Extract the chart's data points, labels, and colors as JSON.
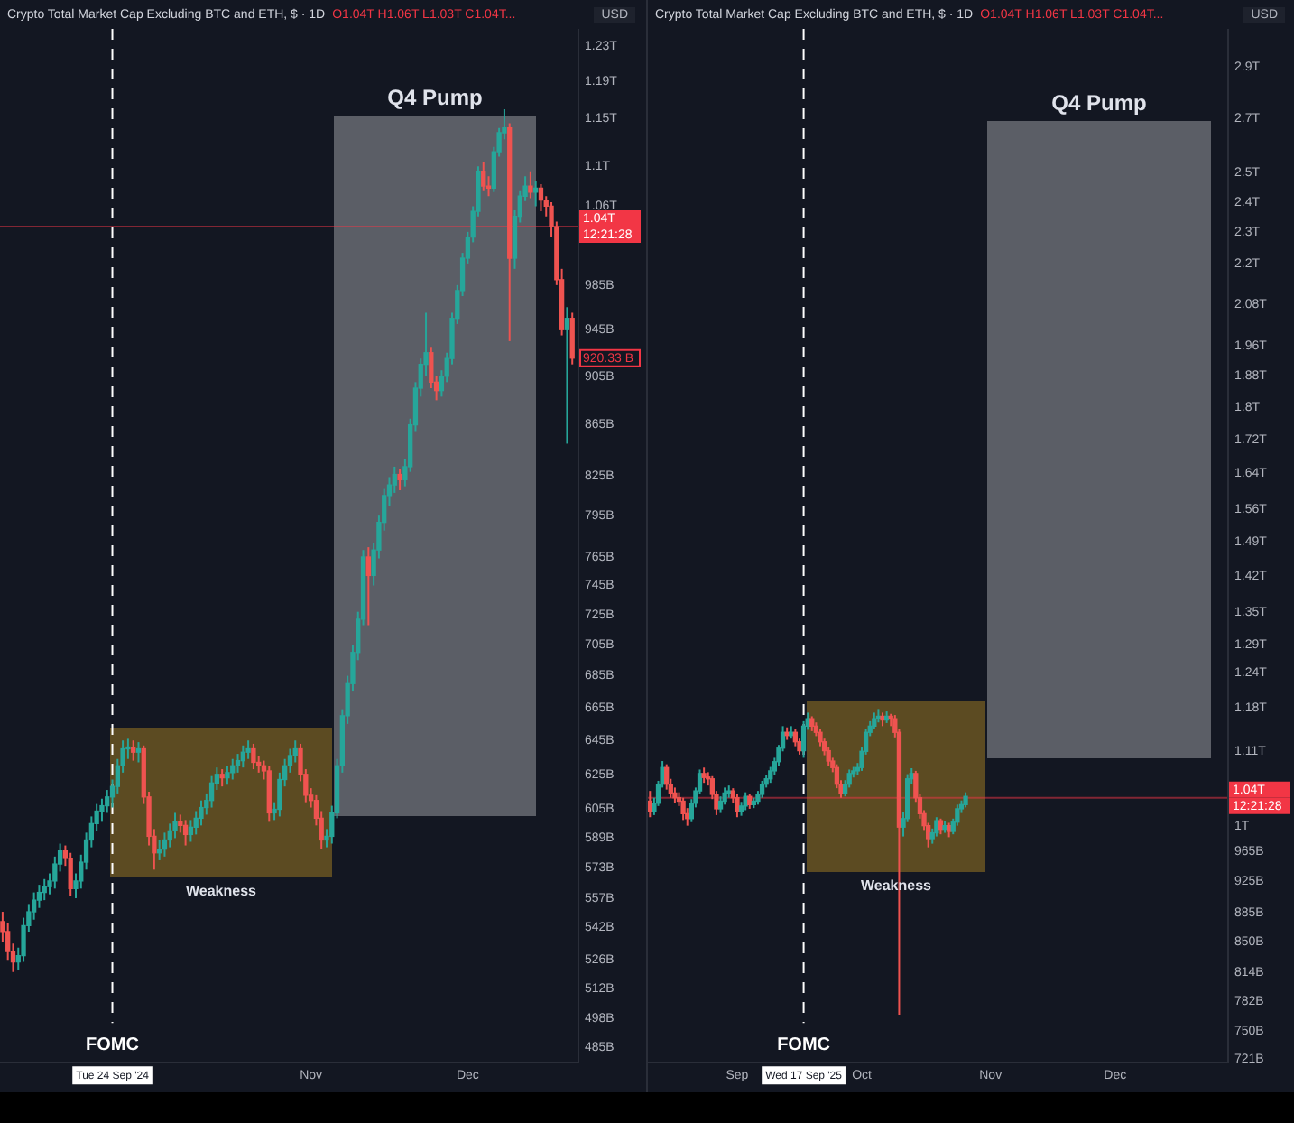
{
  "chart_data": [
    {
      "type": "candlestick",
      "title": "Crypto Total Market Cap Excluding BTC and ETH, $ · 1D",
      "subtitle": "O1.04T H1.06T L1.03T C1.04T...",
      "ylabel": "USD",
      "x": [
        "2024-09-03",
        "2024-09-04",
        "2024-09-05",
        "2024-09-06",
        "2024-09-07",
        "2024-09-08",
        "2024-09-09",
        "2024-09-10",
        "2024-09-11",
        "2024-09-12",
        "2024-09-13",
        "2024-09-14",
        "2024-09-15",
        "2024-09-16",
        "2024-09-17",
        "2024-09-18",
        "2024-09-19",
        "2024-09-20",
        "2024-09-21",
        "2024-09-22",
        "2024-09-23",
        "2024-09-24",
        "2024-09-25",
        "2024-09-26",
        "2024-09-27",
        "2024-09-28",
        "2024-09-29",
        "2024-09-30",
        "2024-10-01",
        "2024-10-02",
        "2024-10-03",
        "2024-10-04",
        "2024-10-05",
        "2024-10-06",
        "2024-10-07",
        "2024-10-08",
        "2024-10-09",
        "2024-10-10",
        "2024-10-11",
        "2024-10-12",
        "2024-10-13",
        "2024-10-14",
        "2024-10-15",
        "2024-10-16",
        "2024-10-17",
        "2024-10-18",
        "2024-10-19",
        "2024-10-20",
        "2024-10-21",
        "2024-10-22",
        "2024-10-23",
        "2024-10-24",
        "2024-10-25",
        "2024-10-26",
        "2024-10-27",
        "2024-10-28",
        "2024-10-29",
        "2024-10-30",
        "2024-10-31",
        "2024-11-01",
        "2024-11-02",
        "2024-11-03",
        "2024-11-04",
        "2024-11-05",
        "2024-11-06",
        "2024-11-07",
        "2024-11-08",
        "2024-11-09",
        "2024-11-10",
        "2024-11-11",
        "2024-11-12",
        "2024-11-13",
        "2024-11-14",
        "2024-11-15",
        "2024-11-16",
        "2024-11-17",
        "2024-11-18",
        "2024-11-19",
        "2024-11-20",
        "2024-11-21",
        "2024-11-22",
        "2024-11-23",
        "2024-11-24",
        "2024-11-25",
        "2024-11-26",
        "2024-11-27",
        "2024-11-28",
        "2024-11-29",
        "2024-11-30",
        "2024-12-01",
        "2024-12-02",
        "2024-12-03",
        "2024-12-04",
        "2024-12-05",
        "2024-12-06",
        "2024-12-07",
        "2024-12-08",
        "2024-12-09",
        "2024-12-10",
        "2024-12-11",
        "2024-12-12",
        "2024-12-13",
        "2024-12-14",
        "2024-12-15",
        "2024-12-16",
        "2024-12-17",
        "2024-12-18",
        "2024-12-19",
        "2024-12-20",
        "2024-12-21"
      ],
      "ohlc": [
        [
          545000000000.0,
          550000000000.0,
          535000000000.0,
          540000000000.0
        ],
        [
          540000000000.0,
          544000000000.0,
          526000000000.0,
          530000000000.0
        ],
        [
          530000000000.0,
          534000000000.0,
          520000000000.0,
          525000000000.0
        ],
        [
          525000000000.0,
          532000000000.0,
          521000000000.0,
          528000000000.0
        ],
        [
          528000000000.0,
          547000000000.0,
          525000000000.0,
          543000000000.0
        ],
        [
          543000000000.0,
          554000000000.0,
          540000000000.0,
          550000000000.0
        ],
        [
          550000000000.0,
          560000000000.0,
          546000000000.0,
          556000000000.0
        ],
        [
          556000000000.0,
          564000000000.0,
          552000000000.0,
          560000000000.0
        ],
        [
          560000000000.0,
          567000000000.0,
          556000000000.0,
          563000000000.0
        ],
        [
          563000000000.0,
          570000000000.0,
          559000000000.0,
          566000000000.0
        ],
        [
          566000000000.0,
          579000000000.0,
          562000000000.0,
          575000000000.0
        ],
        [
          575000000000.0,
          586000000000.0,
          571000000000.0,
          582000000000.0
        ],
        [
          582000000000.0,
          585000000000.0,
          574000000000.0,
          578000000000.0
        ],
        [
          578000000000.0,
          581000000000.0,
          558000000000.0,
          562000000000.0
        ],
        [
          562000000000.0,
          570000000000.0,
          557000000000.0,
          566000000000.0
        ],
        [
          566000000000.0,
          580000000000.0,
          562000000000.0,
          576000000000.0
        ],
        [
          576000000000.0,
          592000000000.0,
          572000000000.0,
          588000000000.0
        ],
        [
          588000000000.0,
          601000000000.0,
          584000000000.0,
          597000000000.0
        ],
        [
          597000000000.0,
          608000000000.0,
          593000000000.0,
          604000000000.0
        ],
        [
          604000000000.0,
          611000000000.0,
          598000000000.0,
          607000000000.0
        ],
        [
          607000000000.0,
          616000000000.0,
          603000000000.0,
          612000000000.0
        ],
        [
          612000000000.0,
          622000000000.0,
          606000000000.0,
          618000000000.0
        ],
        [
          618000000000.0,
          634000000000.0,
          614000000000.0,
          630000000000.0
        ],
        [
          630000000000.0,
          645000000000.0,
          626000000000.0,
          640000000000.0
        ],
        [
          640000000000.0,
          646000000000.0,
          634000000000.0,
          641000000000.0
        ],
        [
          641000000000.0,
          645000000000.0,
          633000000000.0,
          638000000000.0
        ],
        [
          638000000000.0,
          644000000000.0,
          632000000000.0,
          640000000000.0
        ],
        [
          640000000000.0,
          642000000000.0,
          608000000000.0,
          612000000000.0
        ],
        [
          612000000000.0,
          615000000000.0,
          585000000000.0,
          590000000000.0
        ],
        [
          590000000000.0,
          594000000000.0,
          572000000000.0,
          581000000000.0
        ],
        [
          581000000000.0,
          588000000000.0,
          577000000000.0,
          583000000000.0
        ],
        [
          583000000000.0,
          592000000000.0,
          579000000000.0,
          588000000000.0
        ],
        [
          588000000000.0,
          597000000000.0,
          584000000000.0,
          593000000000.0
        ],
        [
          593000000000.0,
          603000000000.0,
          589000000000.0,
          598000000000.0
        ],
        [
          598000000000.0,
          602000000000.0,
          592000000000.0,
          596000000000.0
        ],
        [
          596000000000.0,
          599000000000.0,
          585000000000.0,
          591000000000.0
        ],
        [
          591000000000.0,
          599000000000.0,
          587000000000.0,
          595000000000.0
        ],
        [
          595000000000.0,
          604000000000.0,
          591000000000.0,
          600000000000.0
        ],
        [
          600000000000.0,
          610000000000.0,
          596000000000.0,
          606000000000.0
        ],
        [
          606000000000.0,
          614000000000.0,
          602000000000.0,
          610000000000.0
        ],
        [
          610000000000.0,
          624000000000.0,
          606000000000.0,
          620000000000.0
        ],
        [
          620000000000.0,
          629000000000.0,
          616000000000.0,
          625000000000.0
        ],
        [
          625000000000.0,
          628000000000.0,
          618000000000.0,
          623000000000.0
        ],
        [
          623000000000.0,
          630000000000.0,
          619000000000.0,
          626000000000.0
        ],
        [
          626000000000.0,
          634000000000.0,
          622000000000.0,
          630000000000.0
        ],
        [
          630000000000.0,
          637000000000.0,
          626000000000.0,
          633000000000.0
        ],
        [
          633000000000.0,
          642000000000.0,
          629000000000.0,
          638000000000.0
        ],
        [
          638000000000.0,
          645000000000.0,
          634000000000.0,
          640000000000.0
        ],
        [
          640000000000.0,
          643000000000.0,
          628000000000.0,
          632000000000.0
        ],
        [
          632000000000.0,
          636000000000.0,
          626000000000.0,
          630000000000.0
        ],
        [
          630000000000.0,
          633000000000.0,
          622000000000.0,
          627000000000.0
        ],
        [
          627000000000.0,
          630000000000.0,
          598000000000.0,
          603000000000.0
        ],
        [
          603000000000.0,
          609000000000.0,
          599000000000.0,
          605000000000.0
        ],
        [
          605000000000.0,
          626000000000.0,
          601000000000.0,
          622000000000.0
        ],
        [
          622000000000.0,
          634000000000.0,
          618000000000.0,
          630000000000.0
        ],
        [
          630000000000.0,
          640000000000.0,
          626000000000.0,
          636000000000.0
        ],
        [
          636000000000.0,
          645000000000.0,
          632000000000.0,
          640000000000.0
        ],
        [
          640000000000.0,
          643000000000.0,
          621000000000.0,
          625000000000.0
        ],
        [
          625000000000.0,
          628000000000.0,
          609000000000.0,
          613000000000.0
        ],
        [
          613000000000.0,
          617000000000.0,
          606000000000.0,
          610000000000.0
        ],
        [
          610000000000.0,
          613000000000.0,
          596000000000.0,
          600000000000.0
        ],
        [
          600000000000.0,
          604000000000.0,
          583000000000.0,
          588000000000.0
        ],
        [
          588000000000.0,
          594000000000.0,
          584000000000.0,
          590000000000.0
        ],
        [
          590000000000.0,
          607000000000.0,
          586000000000.0,
          603000000000.0
        ],
        [
          603000000000.0,
          634000000000.0,
          600000000000.0,
          630000000000.0
        ],
        [
          630000000000.0,
          664000000000.0,
          626000000000.0,
          660000000000.0
        ],
        [
          660000000000.0,
          685000000000.0,
          655000000000.0,
          680000000000.0
        ],
        [
          680000000000.0,
          705000000000.0,
          675000000000.0,
          700000000000.0
        ],
        [
          700000000000.0,
          727000000000.0,
          695000000000.0,
          722000000000.0
        ],
        [
          722000000000.0,
          770000000000.0,
          718000000000.0,
          765000000000.0
        ],
        [
          765000000000.0,
          772000000000.0,
          718000000000.0,
          752000000000.0
        ],
        [
          752000000000.0,
          775000000000.0,
          745000000000.0,
          770000000000.0
        ],
        [
          770000000000.0,
          795000000000.0,
          764000000000.0,
          790000000000.0
        ],
        [
          790000000000.0,
          815000000000.0,
          784000000000.0,
          810000000000.0
        ],
        [
          810000000000.0,
          824000000000.0,
          802000000000.0,
          818000000000.0
        ],
        [
          818000000000.0,
          832000000000.0,
          812000000000.0,
          826000000000.0
        ],
        [
          826000000000.0,
          830000000000.0,
          814000000000.0,
          822000000000.0
        ],
        [
          822000000000.0,
          838000000000.0,
          817000000000.0,
          832000000000.0
        ],
        [
          832000000000.0,
          870000000000.0,
          828000000000.0,
          865000000000.0
        ],
        [
          865000000000.0,
          900000000000.0,
          860000000000.0,
          895000000000.0
        ],
        [
          895000000000.0,
          920000000000.0,
          888000000000.0,
          915000000000.0
        ],
        [
          915000000000.0,
          960000000000.0,
          905000000000.0,
          925000000000.0
        ],
        [
          925000000000.0,
          930000000000.0,
          895000000000.0,
          900000000000.0
        ],
        [
          900000000000.0,
          905000000000.0,
          885000000000.0,
          893000000000.0
        ],
        [
          893000000000.0,
          910000000000.0,
          888000000000.0,
          905000000000.0
        ],
        [
          905000000000.0,
          925000000000.0,
          900000000000.0,
          920000000000.0
        ],
        [
          920000000000.0,
          960000000000.0,
          915000000000.0,
          955000000000.0
        ],
        [
          955000000000.0,
          985000000000.0,
          950000000000.0,
          980000000000.0
        ],
        [
          980000000000.0,
          1015000000000.0,
          975000000000.0,
          1010000000000.0
        ],
        [
          1010000000000.0,
          1035000000000.0,
          1005000000000.0,
          1030000000000.0
        ],
        [
          1030000000000.0,
          1060000000000.0,
          1025000000000.0,
          1055000000000.0
        ],
        [
          1055000000000.0,
          1100000000000.0,
          1050000000000.0,
          1095000000000.0
        ],
        [
          1095000000000.0,
          1105000000000.0,
          1075000000000.0,
          1080000000000.0
        ],
        [
          1080000000000.0,
          1090000000000.0,
          1070000000000.0,
          1078000000000.0
        ],
        [
          1078000000000.0,
          1120000000000.0,
          1074000000000.0,
          1115000000000.0
        ],
        [
          1115000000000.0,
          1140000000000.0,
          1110000000000.0,
          1135000000000.0
        ],
        [
          1135000000000.0,
          1160000000000.0,
          1128000000000.0,
          1140000000000.0
        ],
        [
          1140000000000.0,
          1145000000000.0,
          935000000000.0,
          1010000000000.0
        ],
        [
          1010000000000.0,
          1056000000000.0,
          1000000000000.0,
          1050000000000.0
        ],
        [
          1050000000000.0,
          1075000000000.0,
          1044000000000.0,
          1070000000000.0
        ],
        [
          1070000000000.0,
          1090000000000.0,
          1065000000000.0,
          1080000000000.0
        ],
        [
          1080000000000.0,
          1095000000000.0,
          1068000000000.0,
          1074000000000.0
        ],
        [
          1074000000000.0,
          1085000000000.0,
          1060000000000.0,
          1078000000000.0
        ],
        [
          1078000000000.0,
          1082000000000.0,
          1055000000000.0,
          1066000000000.0
        ],
        [
          1066000000000.0,
          1070000000000.0,
          1050000000000.0,
          1060000000000.0
        ],
        [
          1060000000000.0,
          1064000000000.0,
          1030000000000.0,
          1040000000000.0
        ],
        [
          1040000000000.0,
          1045000000000.0,
          985000000000.0,
          990000000000.0
        ],
        [
          990000000000.0,
          1000000000000.0,
          940000000000.0,
          945000000000.0
        ],
        [
          945000000000.0,
          965000000000.0,
          850000000000.0,
          955000000000.0
        ],
        [
          955000000000.0,
          960000000000.0,
          915000000000.0,
          920330000000.0
        ]
      ],
      "colors": [
        "#ef5350",
        "#ef5350",
        "#ef5350",
        "#26a69a",
        "#26a69a",
        "#26a69a",
        "#26a69a",
        "#26a69a",
        "#26a69a",
        "#26a69a",
        "#26a69a",
        "#26a69a",
        "#ef5350",
        "#ef5350",
        "#26a69a",
        "#26a69a",
        "#26a69a",
        "#26a69a",
        "#26a69a",
        "#26a69a",
        "#26a69a",
        "#26a69a",
        "#26a69a",
        "#26a69a",
        "#26a69a",
        "#ef5350",
        "#26a69a",
        "#ef5350",
        "#ef5350",
        "#ef5350",
        "#26a69a",
        "#26a69a",
        "#26a69a",
        "#26a69a",
        "#ef5350",
        "#ef5350",
        "#26a69a",
        "#26a69a",
        "#26a69a",
        "#26a69a",
        "#26a69a",
        "#26a69a",
        "#ef5350",
        "#26a69a",
        "#26a69a",
        "#26a69a",
        "#26a69a",
        "#26a69a",
        "#ef5350",
        "#ef5350",
        "#ef5350",
        "#ef5350",
        "#26a69a",
        "#26a69a",
        "#26a69a",
        "#26a69a",
        "#26a69a",
        "#ef5350",
        "#ef5350",
        "#ef5350",
        "#ef5350",
        "#ef5350",
        "#26a69a",
        "#26a69a",
        "#26a69a",
        "#26a69a",
        "#26a69a",
        "#26a69a",
        "#26a69a",
        "#26a69a",
        "#ef5350",
        "#26a69a",
        "#26a69a",
        "#26a69a",
        "#26a69a",
        "#26a69a",
        "#ef5350",
        "#26a69a",
        "#26a69a",
        "#26a69a",
        "#26a69a",
        "#26a69a",
        "#ef5350",
        "#ef5350",
        "#26a69a",
        "#26a69a",
        "#26a69a",
        "#26a69a",
        "#26a69a",
        "#26a69a",
        "#26a69a",
        "#26a69a",
        "#ef5350",
        "#ef5350",
        "#26a69a",
        "#26a69a",
        "#26a69a",
        "#ef5350",
        "#26a69a",
        "#26a69a",
        "#26a69a",
        "#ef5350",
        "#26a69a",
        "#ef5350",
        "#ef5350",
        "#ef5350",
        "#ef5350",
        "#ef5350",
        "#26a69a",
        "#ef5350"
      ],
      "log": true,
      "xlim": [
        "2024-09-02T12:00",
        "2024-12-22"
      ],
      "ylim": [
        478000000000.0,
        1250000000000.0
      ],
      "xticks": [
        {
          "value": "2024-11-01",
          "label": "Nov"
        },
        {
          "value": "2024-12-01",
          "label": "Dec"
        }
      ],
      "yticks": [
        {
          "value": 1230000000000.0,
          "label": "1.23T"
        },
        {
          "value": 1190000000000.0,
          "label": "1.19T"
        },
        {
          "value": 1150000000000.0,
          "label": "1.15T"
        },
        {
          "value": 1100000000000.0,
          "label": "1.1T"
        },
        {
          "value": 1060000000000.0,
          "label": "1.06T"
        },
        {
          "value": 985000000000.0,
          "label": "985B"
        },
        {
          "value": 945000000000.0,
          "label": "945B"
        },
        {
          "value": 905000000000.0,
          "label": "905B"
        },
        {
          "value": 865000000000.0,
          "label": "865B"
        },
        {
          "value": 825000000000.0,
          "label": "825B"
        },
        {
          "value": 795000000000.0,
          "label": "795B"
        },
        {
          "value": 765000000000.0,
          "label": "765B"
        },
        {
          "value": 745000000000.0,
          "label": "745B"
        },
        {
          "value": 725000000000.0,
          "label": "725B"
        },
        {
          "value": 705000000000.0,
          "label": "705B"
        },
        {
          "value": 685000000000.0,
          "label": "685B"
        },
        {
          "value": 665000000000.0,
          "label": "665B"
        },
        {
          "value": 645000000000.0,
          "label": "645B"
        },
        {
          "value": 625000000000.0,
          "label": "625B"
        },
        {
          "value": 605000000000.0,
          "label": "605B"
        },
        {
          "value": 589000000000.0,
          "label": "589B"
        },
        {
          "value": 573000000000.0,
          "label": "573B"
        },
        {
          "value": 557000000000.0,
          "label": "557B"
        },
        {
          "value": 542000000000.0,
          "label": "542B"
        },
        {
          "value": 526000000000.0,
          "label": "526B"
        },
        {
          "value": 512000000000.0,
          "label": "512B"
        },
        {
          "value": 498000000000.0,
          "label": "498B"
        },
        {
          "value": 485000000000.0,
          "label": "485B"
        }
      ],
      "ref_lines": [
        {
          "axis": "x",
          "value": "2024-09-24",
          "label": "FOMC",
          "color": "#ffffff",
          "line_style": "dashed"
        },
        {
          "axis": "y",
          "value": 1040000000000.0,
          "label": "1.04T",
          "color": "#f23645"
        }
      ],
      "annotations": [
        "Tue 24 Sep '24",
        "12:21:28",
        "Weakness",
        "Q4 Pump",
        {
          "text": "920.33 B",
          "x": "2024-12-21",
          "y": 920330000000.0
        }
      ]
    },
    {
      "type": "candlestick",
      "title": "Crypto Total Market Cap Excluding BTC and ETH, $ · 1D",
      "subtitle": "O1.04T H1.06T L1.03T C1.04T...",
      "ylabel": "USD",
      "x": [
        "2025-08-11",
        "2025-08-12",
        "2025-08-13",
        "2025-08-14",
        "2025-08-15",
        "2025-08-16",
        "2025-08-17",
        "2025-08-18",
        "2025-08-19",
        "2025-08-20",
        "2025-08-21",
        "2025-08-22",
        "2025-08-23",
        "2025-08-24",
        "2025-08-25",
        "2025-08-26",
        "2025-08-27",
        "2025-08-28",
        "2025-08-29",
        "2025-08-30",
        "2025-08-31",
        "2025-09-01",
        "2025-09-02",
        "2025-09-03",
        "2025-09-04",
        "2025-09-05",
        "2025-09-06",
        "2025-09-07",
        "2025-09-08",
        "2025-09-09",
        "2025-09-10",
        "2025-09-11",
        "2025-09-12",
        "2025-09-13",
        "2025-09-14",
        "2025-09-15",
        "2025-09-16",
        "2025-09-17",
        "2025-09-18",
        "2025-09-19",
        "2025-09-20",
        "2025-09-21",
        "2025-09-22",
        "2025-09-23",
        "2025-09-24",
        "2025-09-25",
        "2025-09-26",
        "2025-09-27",
        "2025-09-28",
        "2025-09-29",
        "2025-09-30",
        "2025-10-01",
        "2025-10-02",
        "2025-10-03",
        "2025-10-04",
        "2025-10-05",
        "2025-10-06",
        "2025-10-07",
        "2025-10-08",
        "2025-10-09",
        "2025-10-10",
        "2025-10-11",
        "2025-10-12",
        "2025-10-13",
        "2025-10-14",
        "2025-10-15",
        "2025-10-16",
        "2025-10-17",
        "2025-10-18",
        "2025-10-19",
        "2025-10-20",
        "2025-10-21",
        "2025-10-22",
        "2025-10-23",
        "2025-10-24",
        "2025-10-25",
        "2025-10-26"
      ],
      "ohlc": [
        [
          1035000000000.0,
          1050000000000.0,
          1012000000000.0,
          1020000000000.0
        ],
        [
          1020000000000.0,
          1040000000000.0,
          1015000000000.0,
          1032000000000.0
        ],
        [
          1032000000000.0,
          1065000000000.0,
          1028000000000.0,
          1060000000000.0
        ],
        [
          1060000000000.0,
          1095000000000.0,
          1055000000000.0,
          1085000000000.0
        ],
        [
          1085000000000.0,
          1090000000000.0,
          1052000000000.0,
          1060000000000.0
        ],
        [
          1060000000000.0,
          1068000000000.0,
          1040000000000.0,
          1047000000000.0
        ],
        [
          1047000000000.0,
          1055000000000.0,
          1032000000000.0,
          1040000000000.0
        ],
        [
          1040000000000.0,
          1048000000000.0,
          1028000000000.0,
          1035000000000.0
        ],
        [
          1035000000000.0,
          1040000000000.0,
          1008000000000.0,
          1017000000000.0
        ],
        [
          1017000000000.0,
          1025000000000.0,
          1000000000000.0,
          1010000000000.0
        ],
        [
          1010000000000.0,
          1038000000000.0,
          1005000000000.0,
          1032000000000.0
        ],
        [
          1032000000000.0,
          1055000000000.0,
          1026000000000.0,
          1050000000000.0
        ],
        [
          1050000000000.0,
          1082000000000.0,
          1045000000000.0,
          1076000000000.0
        ],
        [
          1076000000000.0,
          1085000000000.0,
          1062000000000.0,
          1070000000000.0
        ],
        [
          1070000000000.0,
          1078000000000.0,
          1058000000000.0,
          1068000000000.0
        ],
        [
          1068000000000.0,
          1072000000000.0,
          1038000000000.0,
          1045000000000.0
        ],
        [
          1045000000000.0,
          1050000000000.0,
          1015000000000.0,
          1024000000000.0
        ],
        [
          1024000000000.0,
          1042000000000.0,
          1018000000000.0,
          1035000000000.0
        ],
        [
          1035000000000.0,
          1055000000000.0,
          1030000000000.0,
          1047000000000.0
        ],
        [
          1047000000000.0,
          1058000000000.0,
          1040000000000.0,
          1050000000000.0
        ],
        [
          1050000000000.0,
          1054000000000.0,
          1033000000000.0,
          1040000000000.0
        ],
        [
          1040000000000.0,
          1045000000000.0,
          1012000000000.0,
          1020000000000.0
        ],
        [
          1020000000000.0,
          1034000000000.0,
          1014000000000.0,
          1028000000000.0
        ],
        [
          1028000000000.0,
          1048000000000.0,
          1022000000000.0,
          1042000000000.0
        ],
        [
          1042000000000.0,
          1046000000000.0,
          1024000000000.0,
          1030000000000.0
        ],
        [
          1030000000000.0,
          1040000000000.0,
          1025000000000.0,
          1035000000000.0
        ],
        [
          1035000000000.0,
          1050000000000.0,
          1030000000000.0,
          1045000000000.0
        ],
        [
          1045000000000.0,
          1065000000000.0,
          1040000000000.0,
          1060000000000.0
        ],
        [
          1060000000000.0,
          1074000000000.0,
          1055000000000.0,
          1068000000000.0
        ],
        [
          1068000000000.0,
          1086000000000.0,
          1062000000000.0,
          1080000000000.0
        ],
        [
          1080000000000.0,
          1100000000000.0,
          1074000000000.0,
          1094000000000.0
        ],
        [
          1094000000000.0,
          1120000000000.0,
          1088000000000.0,
          1115000000000.0
        ],
        [
          1115000000000.0,
          1150000000000.0,
          1110000000000.0,
          1140000000000.0
        ],
        [
          1140000000000.0,
          1148000000000.0,
          1128000000000.0,
          1135000000000.0
        ],
        [
          1135000000000.0,
          1150000000000.0,
          1130000000000.0,
          1140000000000.0
        ],
        [
          1140000000000.0,
          1145000000000.0,
          1118000000000.0,
          1125000000000.0
        ],
        [
          1125000000000.0,
          1130000000000.0,
          1105000000000.0,
          1111000000000.0
        ],
        [
          1111000000000.0,
          1158000000000.0,
          1100000000000.0,
          1150000000000.0
        ],
        [
          1150000000000.0,
          1172000000000.0,
          1144000000000.0,
          1162000000000.0
        ],
        [
          1162000000000.0,
          1166000000000.0,
          1142000000000.0,
          1150000000000.0
        ],
        [
          1150000000000.0,
          1156000000000.0,
          1134000000000.0,
          1140000000000.0
        ],
        [
          1140000000000.0,
          1145000000000.0,
          1118000000000.0,
          1125000000000.0
        ],
        [
          1125000000000.0,
          1130000000000.0,
          1104000000000.0,
          1111000000000.0
        ],
        [
          1111000000000.0,
          1116000000000.0,
          1088000000000.0,
          1095000000000.0
        ],
        [
          1095000000000.0,
          1100000000000.0,
          1078000000000.0,
          1085000000000.0
        ],
        [
          1085000000000.0,
          1090000000000.0,
          1054000000000.0,
          1060000000000.0
        ],
        [
          1060000000000.0,
          1066000000000.0,
          1040000000000.0,
          1047000000000.0
        ],
        [
          1047000000000.0,
          1066000000000.0,
          1042000000000.0,
          1060000000000.0
        ],
        [
          1060000000000.0,
          1082000000000.0,
          1055000000000.0,
          1076000000000.0
        ],
        [
          1076000000000.0,
          1086000000000.0,
          1070000000000.0,
          1080000000000.0
        ],
        [
          1080000000000.0,
          1092000000000.0,
          1074000000000.0,
          1085000000000.0
        ],
        [
          1085000000000.0,
          1116000000000.0,
          1080000000000.0,
          1110000000000.0
        ],
        [
          1110000000000.0,
          1146000000000.0,
          1105000000000.0,
          1140000000000.0
        ],
        [
          1140000000000.0,
          1158000000000.0,
          1134000000000.0,
          1150000000000.0
        ],
        [
          1150000000000.0,
          1172000000000.0,
          1145000000000.0,
          1162000000000.0
        ],
        [
          1162000000000.0,
          1178000000000.0,
          1156000000000.0,
          1166000000000.0
        ],
        [
          1166000000000.0,
          1172000000000.0,
          1150000000000.0,
          1160000000000.0
        ],
        [
          1160000000000.0,
          1174000000000.0,
          1155000000000.0,
          1166000000000.0
        ],
        [
          1166000000000.0,
          1170000000000.0,
          1150000000000.0,
          1162000000000.0
        ],
        [
          1162000000000.0,
          1168000000000.0,
          1132000000000.0,
          1140000000000.0
        ],
        [
          1140000000000.0,
          1146000000000.0,
          767000000000.0,
          998000000000.0
        ],
        [
          998000000000.0,
          1020000000000.0,
          985000000000.0,
          1010000000000.0
        ],
        [
          1010000000000.0,
          1075000000000.0,
          1005000000000.0,
          1068000000000.0
        ],
        [
          1068000000000.0,
          1084000000000.0,
          1060000000000.0,
          1076000000000.0
        ],
        [
          1076000000000.0,
          1080000000000.0,
          1034000000000.0,
          1040000000000.0
        ],
        [
          1040000000000.0,
          1046000000000.0,
          1010000000000.0,
          1017000000000.0
        ],
        [
          1017000000000.0,
          1022000000000.0,
          994000000000.0,
          1000000000000.0
        ],
        [
          1000000000000.0,
          1004000000000.0,
          970000000000.0,
          982000000000.0
        ],
        [
          982000000000.0,
          996000000000.0,
          975000000000.0,
          990000000000.0
        ],
        [
          990000000000.0,
          1012000000000.0,
          985000000000.0,
          1007000000000.0
        ],
        [
          1007000000000.0,
          1010000000000.0,
          988000000000.0,
          995000000000.0
        ],
        [
          995000000000.0,
          1006000000000.0,
          990000000000.0,
          1000000000000.0
        ],
        [
          1000000000000.0,
          1004000000000.0,
          984000000000.0,
          992000000000.0
        ],
        [
          992000000000.0,
          1010000000000.0,
          988000000000.0,
          1005000000000.0
        ],
        [
          1005000000000.0,
          1030000000000.0,
          1000000000000.0,
          1024000000000.0
        ],
        [
          1024000000000.0,
          1036000000000.0,
          1018000000000.0,
          1030000000000.0
        ],
        [
          1030000000000.0,
          1048000000000.0,
          1026000000000.0,
          1042000000000.0
        ]
      ],
      "colors": [
        "#ef5350",
        "#26a69a",
        "#26a69a",
        "#26a69a",
        "#ef5350",
        "#ef5350",
        "#ef5350",
        "#ef5350",
        "#ef5350",
        "#ef5350",
        "#26a69a",
        "#26a69a",
        "#26a69a",
        "#ef5350",
        "#ef5350",
        "#ef5350",
        "#ef5350",
        "#26a69a",
        "#26a69a",
        "#26a69a",
        "#ef5350",
        "#ef5350",
        "#26a69a",
        "#26a69a",
        "#ef5350",
        "#26a69a",
        "#26a69a",
        "#26a69a",
        "#26a69a",
        "#26a69a",
        "#26a69a",
        "#26a69a",
        "#26a69a",
        "#ef5350",
        "#26a69a",
        "#ef5350",
        "#ef5350",
        "#26a69a",
        "#26a69a",
        "#ef5350",
        "#ef5350",
        "#ef5350",
        "#ef5350",
        "#ef5350",
        "#ef5350",
        "#ef5350",
        "#ef5350",
        "#26a69a",
        "#26a69a",
        "#26a69a",
        "#26a69a",
        "#26a69a",
        "#26a69a",
        "#26a69a",
        "#26a69a",
        "#26a69a",
        "#ef5350",
        "#26a69a",
        "#ef5350",
        "#ef5350",
        "#ef5350",
        "#26a69a",
        "#26a69a",
        "#26a69a",
        "#ef5350",
        "#ef5350",
        "#ef5350",
        "#ef5350",
        "#26a69a",
        "#26a69a",
        "#ef5350",
        "#26a69a",
        "#ef5350",
        "#26a69a",
        "#26a69a",
        "#26a69a",
        "#26a69a"
      ],
      "log": true,
      "xlim": [
        "2025-08-10T12:00",
        "2025-12-28"
      ],
      "ylim": [
        717000000000.0,
        3060000000000.0
      ],
      "xticks": [
        {
          "value": "2025-09-01",
          "label": "Sep"
        },
        {
          "value": "2025-10-01",
          "label": "Oct"
        },
        {
          "value": "2025-11-01",
          "label": "Nov"
        },
        {
          "value": "2025-12-01",
          "label": "Dec"
        }
      ],
      "yticks": [
        {
          "value": 2900000000000.0,
          "label": "2.9T"
        },
        {
          "value": 2700000000000.0,
          "label": "2.7T"
        },
        {
          "value": 2500000000000.0,
          "label": "2.5T"
        },
        {
          "value": 2400000000000.0,
          "label": "2.4T"
        },
        {
          "value": 2300000000000.0,
          "label": "2.3T"
        },
        {
          "value": 2200000000000.0,
          "label": "2.2T"
        },
        {
          "value": 2080000000000.0,
          "label": "2.08T"
        },
        {
          "value": 1960000000000.0,
          "label": "1.96T"
        },
        {
          "value": 1880000000000.0,
          "label": "1.88T"
        },
        {
          "value": 1800000000000.0,
          "label": "1.8T"
        },
        {
          "value": 1720000000000.0,
          "label": "1.72T"
        },
        {
          "value": 1640000000000.0,
          "label": "1.64T"
        },
        {
          "value": 1560000000000.0,
          "label": "1.56T"
        },
        {
          "value": 1490000000000.0,
          "label": "1.49T"
        },
        {
          "value": 1420000000000.0,
          "label": "1.42T"
        },
        {
          "value": 1350000000000.0,
          "label": "1.35T"
        },
        {
          "value": 1290000000000.0,
          "label": "1.29T"
        },
        {
          "value": 1240000000000.0,
          "label": "1.24T"
        },
        {
          "value": 1180000000000.0,
          "label": "1.18T"
        },
        {
          "value": 1110000000000.0,
          "label": "1.11T"
        },
        {
          "value": 1000000000000.0,
          "label": "1T"
        },
        {
          "value": 965000000000.0,
          "label": "965B"
        },
        {
          "value": 925000000000.0,
          "label": "925B"
        },
        {
          "value": 885000000000.0,
          "label": "885B"
        },
        {
          "value": 850000000000.0,
          "label": "850B"
        },
        {
          "value": 814000000000.0,
          "label": "814B"
        },
        {
          "value": 782000000000.0,
          "label": "782B"
        },
        {
          "value": 750000000000.0,
          "label": "750B"
        },
        {
          "value": 721000000000.0,
          "label": "721B"
        }
      ],
      "ref_lines": [
        {
          "axis": "x",
          "value": "2025-09-17",
          "label": "FOMC",
          "color": "#ffffff",
          "line_style": "dashed"
        },
        {
          "axis": "y",
          "value": 1040000000000.0,
          "label": "1.04T",
          "color": "#f23645"
        }
      ],
      "annotations": [
        "Wed 17 Sep '25",
        "12:21:28",
        "Weakness",
        "Q4 Pump"
      ]
    }
  ]
}
